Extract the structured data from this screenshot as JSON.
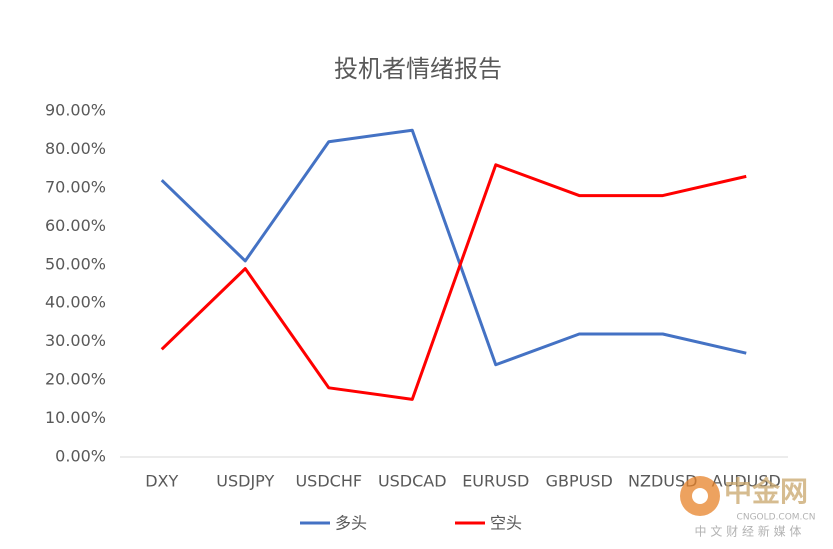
{
  "chart_data": {
    "type": "line",
    "title": "投机者情绪报告",
    "categories": [
      "DXY",
      "USDJPY",
      "USDCHF",
      "USDCAD",
      "EURUSD",
      "GBPUSD",
      "NZDUSD",
      "AUDUSD"
    ],
    "series": [
      {
        "name": "多头",
        "color": "#4472c4",
        "values": [
          72,
          51,
          82,
          85,
          24,
          32,
          32,
          27
        ]
      },
      {
        "name": "空头",
        "color": "#ff0000",
        "values": [
          28,
          49,
          18,
          15,
          76,
          68,
          68,
          73
        ]
      }
    ],
    "ylim": [
      0,
      90
    ],
    "yticks": [
      {
        "value": 0,
        "label": "0.00%"
      },
      {
        "value": 10,
        "label": "10.00%"
      },
      {
        "value": 20,
        "label": "20.00%"
      },
      {
        "value": 30,
        "label": "30.00%"
      },
      {
        "value": 40,
        "label": "40.00%"
      },
      {
        "value": 50,
        "label": "50.00%"
      },
      {
        "value": 60,
        "label": "60.00%"
      },
      {
        "value": 70,
        "label": "70.00%"
      },
      {
        "value": 80,
        "label": "80.00%"
      },
      {
        "value": 90,
        "label": "90.00%"
      }
    ],
    "grid": false,
    "legend": "bottom"
  },
  "watermark": {
    "brand": "中金网",
    "url": "CNGOLD.COM.CN",
    "tagline": "中 文 财 经 新 媒 体"
  }
}
